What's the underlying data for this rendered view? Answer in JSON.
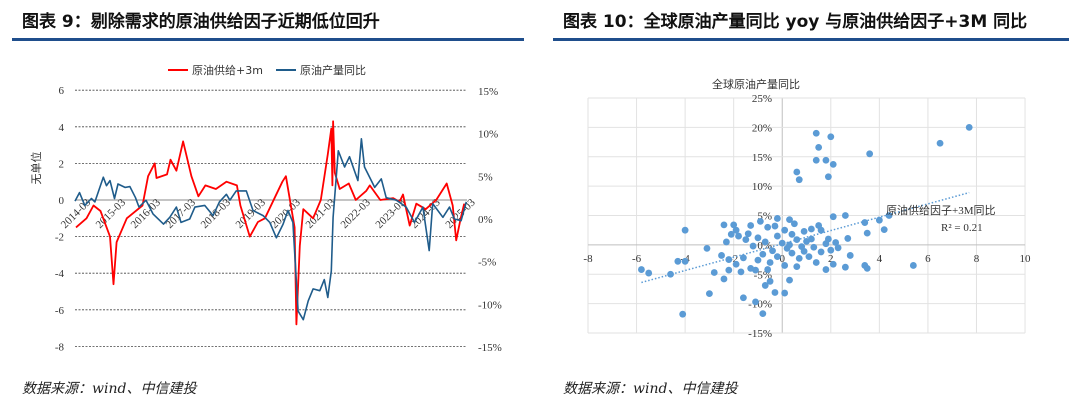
{
  "left_panel": {
    "title": "图表 9：剔除需求的原油供给因子近期低位回升",
    "source": "数据来源：wind、中信建投"
  },
  "right_panel": {
    "title": "图表 10：全球原油产量同比 yoy 与原油供给因子+3M 同比",
    "source": "数据来源：wind、中信建投"
  },
  "colors": {
    "header_rule": "#1f4e8c",
    "red": "#ff0000",
    "blue": "#1f5c8b",
    "scatter": "#5b9bd5"
  },
  "chart_data": [
    {
      "type": "line",
      "title": "剔除需求的原油供给因子近期低位回升",
      "ylabel": "无单位",
      "ylim": [
        -8,
        6
      ],
      "y2lim": [
        -15,
        15
      ],
      "yticks": [
        "6",
        "4",
        "2",
        "0",
        "-2",
        "-4",
        "-6",
        "-8"
      ],
      "y2ticks": [
        "15%",
        "10%",
        "5%",
        "0%",
        "-5%",
        "-10%",
        "-15%"
      ],
      "xticks": [
        "2014-03",
        "2015-03",
        "2016-03",
        "2017-03",
        "2018-03",
        "2019-03",
        "2020-03",
        "2021-03",
        "2022-03",
        "2023-03",
        "2024-03",
        "2025-03"
      ],
      "legend_position": "top",
      "series": [
        {
          "name": "原油供给+3m",
          "axis": "left",
          "points": [
            [
              2014.2,
              -1.5
            ],
            [
              2014.5,
              -1
            ],
            [
              2014.7,
              -0.3
            ],
            [
              2014.9,
              -0.6
            ],
            [
              2015.17,
              -2
            ],
            [
              2015.27,
              -4.6
            ],
            [
              2015.36,
              -2.3
            ],
            [
              2015.65,
              -1
            ],
            [
              2016.1,
              -0.3
            ],
            [
              2016.26,
              1.3
            ],
            [
              2016.45,
              2
            ],
            [
              2016.5,
              1.2
            ],
            [
              2016.8,
              1.4
            ],
            [
              2016.9,
              2.2
            ],
            [
              2017.07,
              1.6
            ],
            [
              2017.26,
              3.2
            ],
            [
              2017.36,
              2.4
            ],
            [
              2017.5,
              1.3
            ],
            [
              2017.7,
              0.2
            ],
            [
              2017.9,
              0.8
            ],
            [
              2018.2,
              0.6
            ],
            [
              2018.5,
              1.0
            ],
            [
              2018.8,
              0.8
            ],
            [
              2018.9,
              -0.3
            ],
            [
              2019.17,
              -2
            ],
            [
              2019.4,
              -1.2
            ],
            [
              2019.6,
              -1
            ],
            [
              2019.9,
              0.2
            ],
            [
              2020.1,
              1.0
            ],
            [
              2020.2,
              1.3
            ],
            [
              2020.36,
              -0.5
            ],
            [
              2020.45,
              -1.5
            ],
            [
              2020.5,
              -6.8
            ],
            [
              2020.6,
              -2.5
            ],
            [
              2020.7,
              -0.5
            ],
            [
              2020.98,
              -1
            ],
            [
              2021.2,
              0
            ],
            [
              2021.4,
              2.5
            ],
            [
              2021.5,
              3.9
            ],
            [
              2021.53,
              0.8
            ],
            [
              2021.55,
              4.3
            ],
            [
              2021.6,
              1.5
            ],
            [
              2021.74,
              0.6
            ],
            [
              2022.0,
              0.9
            ],
            [
              2022.2,
              0
            ],
            [
              2022.5,
              0.5
            ],
            [
              2022.6,
              0.8
            ],
            [
              2022.9,
              0
            ],
            [
              2023.27,
              0.1
            ],
            [
              2023.45,
              -0.1
            ],
            [
              2023.55,
              0.3
            ],
            [
              2023.74,
              -1.4
            ],
            [
              2023.93,
              -0.2
            ],
            [
              2024.2,
              -0.5
            ],
            [
              2024.5,
              0
            ],
            [
              2024.8,
              0.9
            ],
            [
              2024.97,
              -0.3
            ],
            [
              2025.07,
              -2.2
            ],
            [
              2025.2,
              -1
            ],
            [
              2025.3,
              -0.2
            ]
          ]
        },
        {
          "name": "原油产量同比",
          "axis": "right",
          "points": [
            [
              2014.17,
              2.1
            ],
            [
              2014.3,
              3.1
            ],
            [
              2014.45,
              1.6
            ],
            [
              2014.64,
              2.4
            ],
            [
              2014.74,
              2
            ],
            [
              2014.98,
              4.9
            ],
            [
              2015.07,
              3.9
            ],
            [
              2015.17,
              4.5
            ],
            [
              2015.3,
              2.4
            ],
            [
              2015.4,
              4.1
            ],
            [
              2015.6,
              3.7
            ],
            [
              2015.74,
              3.8
            ],
            [
              2015.9,
              2.5
            ],
            [
              2016.0,
              1.4
            ],
            [
              2016.2,
              2.2
            ],
            [
              2016.4,
              0.6
            ],
            [
              2016.7,
              -0.6
            ],
            [
              2016.88,
              0.2
            ],
            [
              2017.07,
              1.4
            ],
            [
              2017.2,
              -0.4
            ],
            [
              2017.45,
              0
            ],
            [
              2017.6,
              1.4
            ],
            [
              2017.88,
              1.6
            ],
            [
              2018.12,
              0.4
            ],
            [
              2018.3,
              2
            ],
            [
              2018.5,
              2.9
            ],
            [
              2018.6,
              2.2
            ],
            [
              2018.78,
              3.3
            ],
            [
              2019.07,
              3.3
            ],
            [
              2019.26,
              1
            ],
            [
              2019.55,
              0.4
            ],
            [
              2019.74,
              -0.4
            ],
            [
              2019.93,
              -2.2
            ],
            [
              2020.12,
              -0.6
            ],
            [
              2020.26,
              1
            ],
            [
              2020.4,
              -0.4
            ],
            [
              2020.55,
              -10.8
            ],
            [
              2020.7,
              -11.8
            ],
            [
              2020.84,
              -9.6
            ],
            [
              2020.98,
              -8.2
            ],
            [
              2021.17,
              -8.4
            ],
            [
              2021.3,
              -7.1
            ],
            [
              2021.4,
              -9.2
            ],
            [
              2021.5,
              -6.1
            ],
            [
              2021.55,
              0.2
            ],
            [
              2021.7,
              8
            ],
            [
              2021.88,
              6.1
            ],
            [
              2022.02,
              7.3
            ],
            [
              2022.26,
              4.5
            ],
            [
              2022.36,
              9.4
            ],
            [
              2022.45,
              6.1
            ],
            [
              2022.74,
              3.7
            ],
            [
              2022.93,
              4.7
            ],
            [
              2023.07,
              2.5
            ],
            [
              2023.36,
              2.2
            ],
            [
              2023.64,
              1.4
            ],
            [
              2023.88,
              -0.4
            ],
            [
              2024.12,
              1.4
            ],
            [
              2024.3,
              -3.7
            ],
            [
              2024.4,
              1.8
            ],
            [
              2024.69,
              0.2
            ],
            [
              2024.88,
              1.4
            ],
            [
              2025.02,
              0
            ],
            [
              2025.21,
              -0.2
            ],
            [
              2025.36,
              2
            ]
          ]
        }
      ]
    },
    {
      "type": "scatter",
      "title": "全球原油产量同比",
      "xlim": [
        -8,
        10
      ],
      "ylim": [
        -15,
        25
      ],
      "xticks": [
        "-8",
        "-6",
        "-4",
        "-2",
        "0",
        "2",
        "4",
        "6",
        "8",
        "10"
      ],
      "yticks": [
        "25%",
        "20%",
        "15%",
        "10%",
        "5%",
        "0%",
        "-5%",
        "-10%",
        "-15%"
      ],
      "trendline": {
        "label": "原油供给因子+3M同比",
        "r2_label": "R² = 0.21",
        "from": [
          -5.8,
          -6.4
        ],
        "to": [
          7.7,
          8.9
        ]
      },
      "points": [
        [
          7.7,
          20
        ],
        [
          6.5,
          17.3
        ],
        [
          3.6,
          15.5
        ],
        [
          1.4,
          19
        ],
        [
          2,
          18.4
        ],
        [
          1.5,
          16.6
        ],
        [
          1.4,
          14.4
        ],
        [
          1.8,
          14.4
        ],
        [
          2.1,
          13.7
        ],
        [
          0.6,
          12.4
        ],
        [
          0.7,
          11.1
        ],
        [
          1.9,
          11.6
        ],
        [
          4.4,
          5
        ],
        [
          4,
          4.2
        ],
        [
          3.4,
          3.8
        ],
        [
          4.2,
          2.6
        ],
        [
          3.5,
          2
        ],
        [
          2.6,
          5
        ],
        [
          2.1,
          4.8
        ],
        [
          2.7,
          1.1
        ],
        [
          5.4,
          -3.5
        ],
        [
          3.4,
          -3.5
        ],
        [
          3.5,
          -4
        ],
        [
          2.6,
          -3.8
        ],
        [
          2.8,
          -1.8
        ],
        [
          2.1,
          -3.3
        ],
        [
          1.8,
          -4.2
        ],
        [
          1.4,
          -3
        ],
        [
          -4,
          2.5
        ],
        [
          -5.8,
          -4.2
        ],
        [
          -5.5,
          -4.8
        ],
        [
          -4.6,
          -5
        ],
        [
          -4.3,
          -2.8
        ],
        [
          -4,
          -2.8
        ],
        [
          -4.1,
          -11.8
        ],
        [
          -3,
          -8.3
        ],
        [
          -3.1,
          -0.6
        ],
        [
          -2.8,
          -4.7
        ],
        [
          -2.4,
          -5.8
        ],
        [
          -1.6,
          -9
        ],
        [
          -0.8,
          -11.7
        ],
        [
          -1.1,
          -9.7
        ],
        [
          -0.3,
          -8.1
        ],
        [
          0.1,
          -8.2
        ],
        [
          0.3,
          -6
        ],
        [
          -0.5,
          -6.2
        ],
        [
          -0.7,
          -6.9
        ],
        [
          -2.4,
          3.4
        ],
        [
          -2,
          3.4
        ],
        [
          -1.3,
          3.3
        ],
        [
          -0.2,
          4.5
        ],
        [
          0.3,
          4.3
        ],
        [
          -0.9,
          4
        ],
        [
          -0.6,
          3
        ],
        [
          0.1,
          2.5
        ],
        [
          0.5,
          3.6
        ],
        [
          0.9,
          2.3
        ],
        [
          1.2,
          1
        ],
        [
          1.5,
          3.3
        ],
        [
          1.6,
          2.5
        ],
        [
          1.9,
          1
        ],
        [
          2.2,
          0.4
        ],
        [
          2.3,
          -0.5
        ],
        [
          -2.3,
          0.5
        ],
        [
          -2.1,
          1.8
        ],
        [
          -1.8,
          1.5
        ],
        [
          -1.5,
          0.9
        ],
        [
          -1.2,
          -0.2
        ],
        [
          -1,
          1.2
        ],
        [
          -0.7,
          0.5
        ],
        [
          -0.4,
          -1
        ],
        [
          -0.2,
          1.5
        ],
        [
          0,
          0.3
        ],
        [
          0.2,
          -0.6
        ],
        [
          0.4,
          1.8
        ],
        [
          0.6,
          0.9
        ],
        [
          0.8,
          -0.3
        ],
        [
          1,
          0.6
        ],
        [
          1.3,
          -0.4
        ],
        [
          1.6,
          -1.2
        ],
        [
          1.8,
          0.2
        ],
        [
          2,
          -0.9
        ],
        [
          -2.5,
          -1.8
        ],
        [
          -2.2,
          -2.5
        ],
        [
          -1.9,
          -3.3
        ],
        [
          -1.6,
          -2.2
        ],
        [
          -1.3,
          -4
        ],
        [
          -1,
          -2.6
        ],
        [
          -0.8,
          -1.6
        ],
        [
          -0.5,
          -3
        ],
        [
          -0.2,
          -2
        ],
        [
          0.1,
          -3.5
        ],
        [
          0.4,
          -1.4
        ],
        [
          0.7,
          -2.3
        ],
        [
          0.9,
          -1.1
        ],
        [
          1.1,
          -2
        ],
        [
          -2.2,
          -4.3
        ],
        [
          -1.7,
          -4.6
        ],
        [
          -1.1,
          -4.3
        ],
        [
          -0.6,
          -4.2
        ],
        [
          0.6,
          -3.7
        ],
        [
          -1.9,
          2.5
        ],
        [
          -0.3,
          3.2
        ],
        [
          1.2,
          2.7
        ],
        [
          0.3,
          0
        ],
        [
          -1.4,
          1.9
        ]
      ]
    }
  ]
}
